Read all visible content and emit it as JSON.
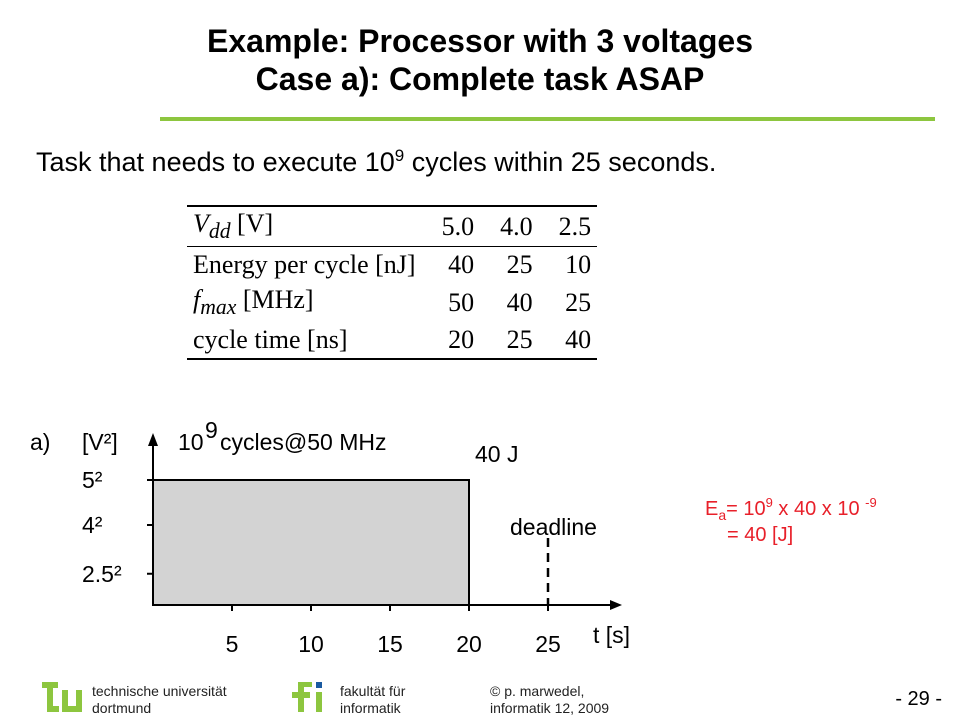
{
  "title": {
    "line1": "Example: Processor with 3 voltages",
    "line2": "Case a): Complete task ASAP"
  },
  "subtitle": {
    "pre": "Task that needs to execute 10",
    "exp": "9",
    "post": " cycles within 25 seconds."
  },
  "table": {
    "header": {
      "label_sym": "V",
      "label_sub": "dd",
      "label_unit": "[V]",
      "values": [
        "5.0",
        "4.0",
        "2.5"
      ]
    },
    "rows": [
      {
        "label": "Energy per cycle [nJ]",
        "values": [
          "40",
          "25",
          "10"
        ]
      },
      {
        "label_sym": "f",
        "label_sub": "max",
        "label_unit": "[MHz]",
        "values": [
          "50",
          "40",
          "25"
        ]
      },
      {
        "label": "cycle time [ns]",
        "values": [
          "20",
          "25",
          "40"
        ]
      }
    ]
  },
  "chart_data": {
    "type": "area",
    "case_label": "a)",
    "ylabel": "[V²]",
    "xlabel": "t [s]",
    "annotation": {
      "base": "10",
      "exp": "9",
      "text": " cycles@50 MHz"
    },
    "energy_label": "40 J",
    "deadline_label": "deadline",
    "x_ticks": [
      "5",
      "10",
      "15",
      "20",
      "25"
    ],
    "y_ticks": [
      "5²",
      "4²",
      "2.5²"
    ],
    "y_tick_values": [
      25,
      16,
      6.25
    ],
    "xlim": [
      0,
      30
    ],
    "ylim": [
      0,
      30
    ],
    "blocks": [
      {
        "x_start": 0,
        "x_end": 20,
        "v_squared": 25
      }
    ],
    "deadline": 25,
    "fill_color": "#d3d3d3"
  },
  "equation": {
    "E": "E",
    "sub": "a",
    "part1": "= 10",
    "exp1": "9",
    "part2": " x 40 x 10 ",
    "exp2": "-9",
    "line2": "= 40 [J]"
  },
  "footer": {
    "uni_line1": "technische universität",
    "uni_line2": "dortmund",
    "fak_line1": "fakultät für",
    "fak_line2": "informatik",
    "author_line1": "© p. marwedel,",
    "author_line2": "informatik 12,  2009",
    "page": "- 29 -",
    "brand_green": "#8dc63f",
    "logo_blue": "#1a5aa0"
  }
}
